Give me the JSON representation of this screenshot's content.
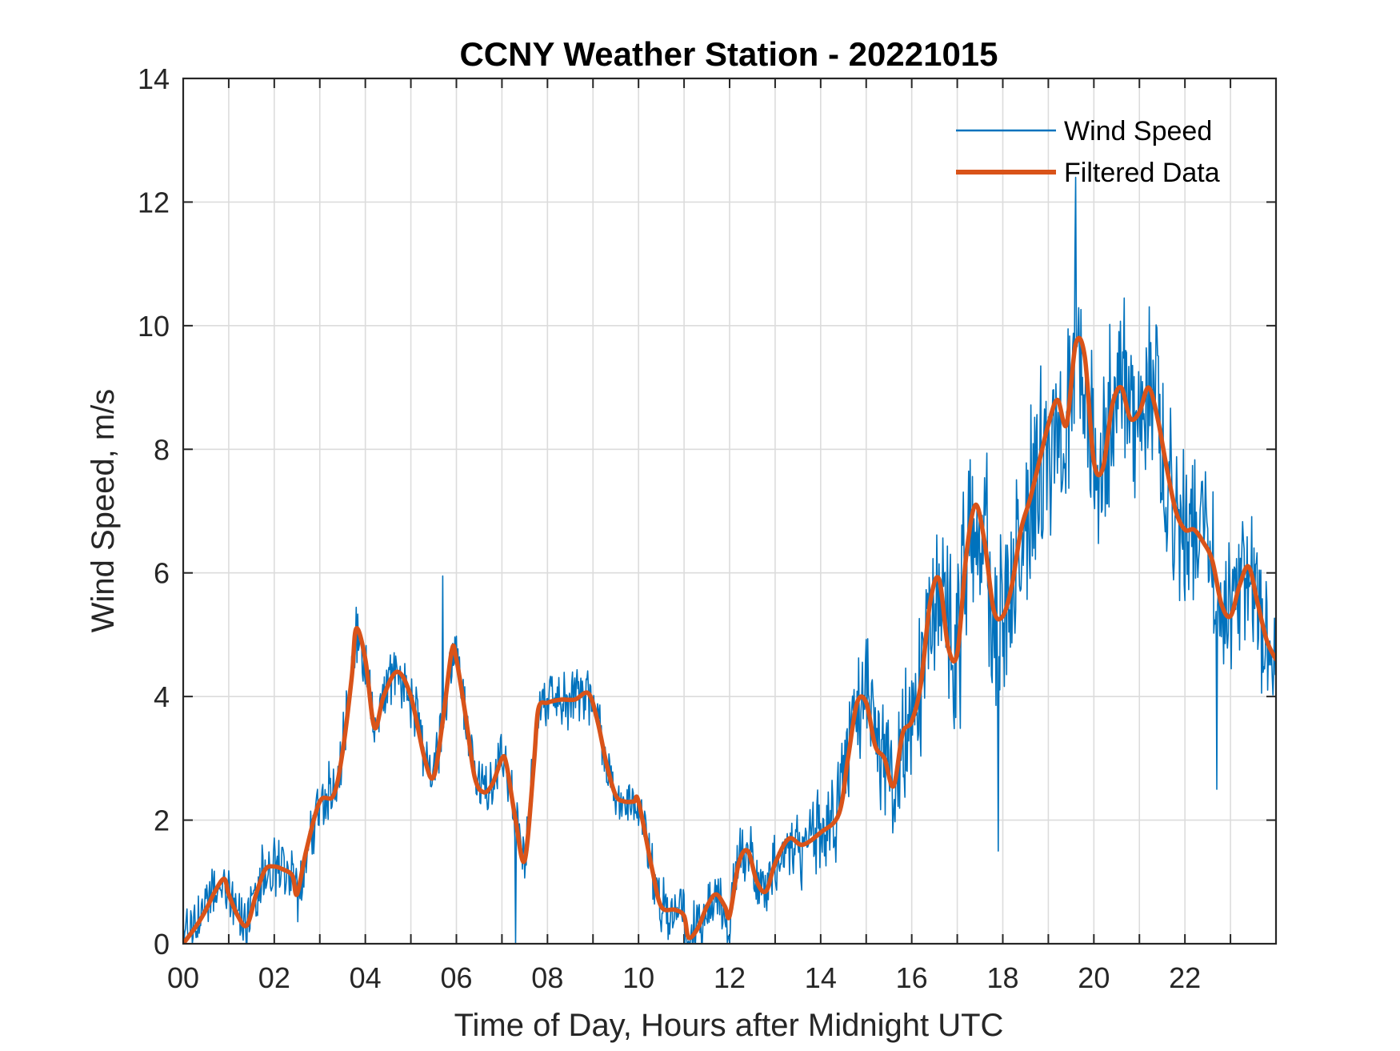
{
  "chart_data": {
    "type": "line",
    "title": "CCNY Weather Station - 20221015",
    "xlabel": "Time of Day, Hours after Midnight UTC",
    "ylabel": "Wind Speed, m/s",
    "xlim": [
      0,
      24
    ],
    "ylim": [
      0,
      14
    ],
    "grid": true,
    "legend_location": "top-right",
    "x_ticks": [
      0,
      2,
      4,
      6,
      8,
      10,
      12,
      14,
      16,
      18,
      20,
      22
    ],
    "x_tick_labels": [
      "00",
      "02",
      "04",
      "06",
      "08",
      "10",
      "12",
      "14",
      "16",
      "18",
      "20",
      "22"
    ],
    "y_ticks": [
      0,
      2,
      4,
      6,
      8,
      10,
      12,
      14
    ],
    "y_tick_labels": [
      "0",
      "2",
      "4",
      "6",
      "8",
      "10",
      "12",
      "14"
    ],
    "series": [
      {
        "name": "Wind Speed",
        "color": "#0072BD",
        "style": "thin",
        "noise_amplitude": [
          [
            0,
            0.45
          ],
          [
            3,
            0.6
          ],
          [
            10,
            0.5
          ],
          [
            13,
            0.6
          ],
          [
            15,
            1.2
          ],
          [
            17,
            1.8
          ],
          [
            19,
            2.0
          ],
          [
            21,
            1.6
          ],
          [
            23,
            1.3
          ],
          [
            24,
            1.2
          ]
        ],
        "peaks": [
          [
            5.7,
            5.95
          ],
          [
            19.6,
            12.4
          ],
          [
            17.9,
            1.5
          ],
          [
            22.7,
            2.5
          ],
          [
            7.3,
            0
          ]
        ],
        "x": [
          0,
          0.3,
          0.5,
          0.7,
          0.9,
          1.0,
          1.2,
          1.4,
          1.6,
          1.8,
          2.0,
          2.2,
          2.4,
          2.5,
          2.7,
          3.0,
          3.3,
          3.5,
          3.7,
          3.8,
          4.0,
          4.2,
          4.4,
          4.7,
          5.0,
          5.3,
          5.5,
          5.7,
          5.9,
          6.0,
          6.2,
          6.4,
          6.6,
          6.8,
          7.0,
          7.1,
          7.3,
          7.5,
          7.7,
          7.8,
          8.0,
          8.3,
          8.6,
          8.9,
          9.1,
          9.3,
          9.5,
          9.7,
          9.9,
          10.0,
          10.3,
          10.5,
          10.8,
          11.0,
          11.1,
          11.3,
          11.5,
          11.7,
          11.9,
          12.0,
          12.2,
          12.4,
          12.6,
          12.8,
          13.0,
          13.3,
          13.6,
          14.0,
          14.4,
          14.6,
          14.8,
          15.0,
          15.2,
          15.4,
          15.6,
          15.8,
          16.0,
          16.2,
          16.4,
          16.6,
          16.8,
          17.0,
          17.2,
          17.4,
          17.6,
          17.8,
          18.0,
          18.2,
          18.4,
          18.6,
          18.8,
          19.0,
          19.2,
          19.4,
          19.6,
          19.8,
          20.0,
          20.2,
          20.4,
          20.6,
          20.8,
          21.0,
          21.2,
          21.4,
          21.6,
          21.8,
          22.0,
          22.2,
          22.4,
          22.6,
          22.8,
          23.0,
          23.2,
          23.4,
          23.6,
          23.8,
          24.0
        ],
        "values": [
          0.1,
          0.4,
          0.6,
          0.9,
          1.05,
          0.8,
          0.45,
          0.3,
          0.8,
          1.2,
          1.25,
          1.2,
          1.1,
          0.8,
          1.5,
          2.3,
          2.4,
          3.1,
          4.3,
          5.1,
          4.6,
          3.5,
          4.0,
          4.4,
          4.0,
          3.0,
          2.7,
          3.6,
          4.75,
          4.6,
          3.7,
          2.7,
          2.45,
          2.6,
          3.0,
          2.9,
          2.0,
          1.35,
          2.9,
          3.8,
          3.9,
          3.95,
          3.95,
          4.05,
          3.6,
          2.9,
          2.4,
          2.3,
          2.3,
          2.3,
          1.2,
          0.6,
          0.55,
          0.45,
          0.15,
          0.25,
          0.6,
          0.8,
          0.6,
          0.45,
          1.3,
          1.5,
          1.0,
          0.85,
          1.3,
          1.7,
          1.6,
          1.8,
          2.1,
          3.0,
          3.9,
          3.9,
          3.2,
          3.0,
          2.55,
          3.4,
          3.6,
          4.2,
          5.5,
          5.9,
          4.8,
          4.7,
          6.3,
          7.1,
          6.5,
          5.4,
          5.3,
          5.8,
          6.7,
          7.2,
          7.8,
          8.4,
          8.8,
          8.4,
          9.7,
          9.5,
          7.8,
          7.7,
          8.7,
          9.0,
          8.5,
          8.6,
          9.0,
          8.5,
          7.7,
          7.0,
          6.7,
          6.7,
          6.5,
          6.2,
          5.5,
          5.3,
          5.8,
          6.1,
          5.5,
          4.9,
          4.6
        ]
      },
      {
        "name": "Filtered Data",
        "color": "#D95319",
        "style": "thick",
        "x": [
          0,
          0.3,
          0.5,
          0.7,
          0.9,
          1.0,
          1.2,
          1.4,
          1.6,
          1.8,
          2.0,
          2.2,
          2.4,
          2.5,
          2.7,
          3.0,
          3.3,
          3.5,
          3.7,
          3.8,
          4.0,
          4.2,
          4.4,
          4.7,
          5.0,
          5.3,
          5.5,
          5.7,
          5.9,
          6.0,
          6.2,
          6.4,
          6.6,
          6.8,
          7.0,
          7.1,
          7.3,
          7.5,
          7.7,
          7.8,
          8.0,
          8.3,
          8.6,
          8.9,
          9.1,
          9.3,
          9.5,
          9.7,
          9.9,
          10.0,
          10.3,
          10.5,
          10.8,
          11.0,
          11.1,
          11.3,
          11.5,
          11.7,
          11.9,
          12.0,
          12.2,
          12.4,
          12.6,
          12.8,
          13.0,
          13.3,
          13.6,
          14.0,
          14.4,
          14.6,
          14.8,
          15.0,
          15.2,
          15.4,
          15.6,
          15.8,
          16.0,
          16.2,
          16.4,
          16.6,
          16.8,
          17.0,
          17.2,
          17.4,
          17.6,
          17.8,
          18.0,
          18.2,
          18.4,
          18.6,
          18.8,
          19.0,
          19.2,
          19.4,
          19.6,
          19.8,
          20.0,
          20.2,
          20.4,
          20.6,
          20.8,
          21.0,
          21.2,
          21.4,
          21.6,
          21.8,
          22.0,
          22.2,
          22.4,
          22.6,
          22.8,
          23.0,
          23.2,
          23.4,
          23.6,
          23.8,
          24.0
        ],
        "values": [
          0.0,
          0.3,
          0.55,
          0.85,
          1.05,
          0.8,
          0.45,
          0.3,
          0.8,
          1.2,
          1.25,
          1.2,
          1.1,
          0.8,
          1.5,
          2.3,
          2.4,
          3.1,
          4.3,
          5.1,
          4.6,
          3.5,
          4.0,
          4.4,
          4.0,
          3.0,
          2.7,
          3.6,
          4.75,
          4.6,
          3.7,
          2.7,
          2.45,
          2.6,
          3.0,
          2.9,
          2.0,
          1.35,
          2.9,
          3.8,
          3.9,
          3.95,
          3.95,
          4.05,
          3.6,
          2.9,
          2.4,
          2.3,
          2.3,
          2.3,
          1.2,
          0.6,
          0.55,
          0.45,
          0.1,
          0.25,
          0.6,
          0.8,
          0.6,
          0.45,
          1.3,
          1.5,
          1.0,
          0.85,
          1.3,
          1.7,
          1.6,
          1.8,
          2.1,
          3.0,
          3.9,
          3.9,
          3.2,
          3.0,
          2.55,
          3.4,
          3.6,
          4.2,
          5.5,
          5.9,
          4.8,
          4.7,
          6.3,
          7.1,
          6.5,
          5.4,
          5.3,
          5.8,
          6.7,
          7.2,
          7.8,
          8.4,
          8.8,
          8.4,
          9.7,
          9.5,
          7.8,
          7.7,
          8.7,
          9.0,
          8.5,
          8.6,
          9.0,
          8.5,
          7.7,
          7.0,
          6.7,
          6.7,
          6.5,
          6.2,
          5.5,
          5.3,
          5.8,
          6.1,
          5.5,
          4.9,
          4.6
        ]
      }
    ]
  }
}
